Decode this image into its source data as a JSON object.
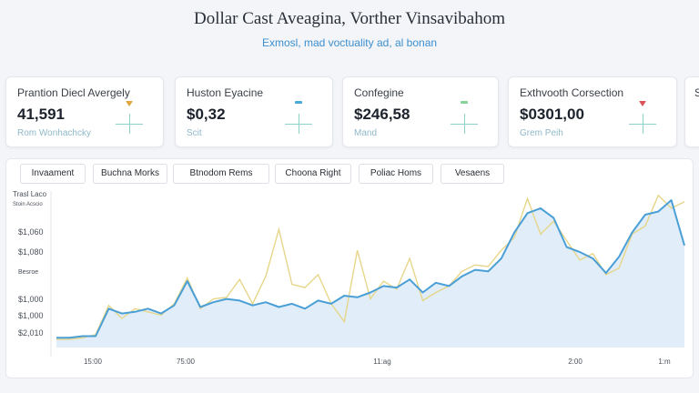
{
  "header": {
    "title": "Dollar Cast Aveagina, Vorther Vinsavibahom",
    "subtitle": "Exmosl, mad voctuality ad, al bonan"
  },
  "kpis": [
    {
      "label": "Prantion Diecl Avergely",
      "value": "41,591",
      "sub": "Rom Wonhachcky",
      "accent": "#e0a640"
    },
    {
      "label": "Huston Eyacine",
      "value": "$0,32",
      "sub": "Scit",
      "accent": "#49a8d8"
    },
    {
      "label": "Confegine",
      "value": "$246,58",
      "sub": "Mand",
      "accent": "#86d39a"
    },
    {
      "label": "Exthvooth Corsection",
      "value": "$0301,00",
      "sub": "Grem Peih",
      "accent": "#d9545a"
    }
  ],
  "chips": [
    "Invaament",
    "Buchna Morks",
    "Btnodom Rems",
    "Choona Right",
    "Poliac Homs",
    "Vesaens"
  ],
  "chart_data": {
    "type": "line",
    "ylabel": "Trasl Laco",
    "ylabel_sub": "Stoin Acscio",
    "y_tick_labels": [
      "$1,060",
      "$1,080",
      "Besroe",
      "$1,000",
      "$1,000",
      "$2,010"
    ],
    "x_tick_labels": [
      "15:00",
      "75:00",
      "11:ag",
      "2:00",
      "1:m"
    ],
    "colors": {
      "blue": "#4a9fd6",
      "yellow": "#e6d68a",
      "fill": "#d9e8f6"
    },
    "ylim": [
      0,
      100
    ],
    "grid": false,
    "series": [
      {
        "values": [
          6,
          6,
          7,
          7,
          24,
          21,
          22,
          24,
          21,
          26,
          41,
          25,
          28,
          30,
          29,
          26,
          28,
          25,
          27,
          24,
          29,
          27,
          32,
          31,
          34,
          38,
          37,
          42,
          34,
          40,
          38,
          44,
          48,
          47,
          55,
          71,
          83,
          86,
          80,
          62,
          59,
          55,
          46,
          56,
          71,
          82,
          84,
          91,
          63
        ]
      },
      {
        "values": [
          5,
          5,
          6,
          8,
          26,
          18,
          24,
          22,
          20,
          27,
          43,
          24,
          30,
          31,
          42,
          27,
          44,
          73,
          39,
          37,
          45,
          27,
          16,
          60,
          30,
          41,
          36,
          55,
          29,
          34,
          38,
          47,
          51,
          50,
          60,
          68,
          92,
          70,
          78,
          66,
          54,
          58,
          45,
          49,
          70,
          75,
          94,
          86,
          90
        ]
      }
    ]
  }
}
